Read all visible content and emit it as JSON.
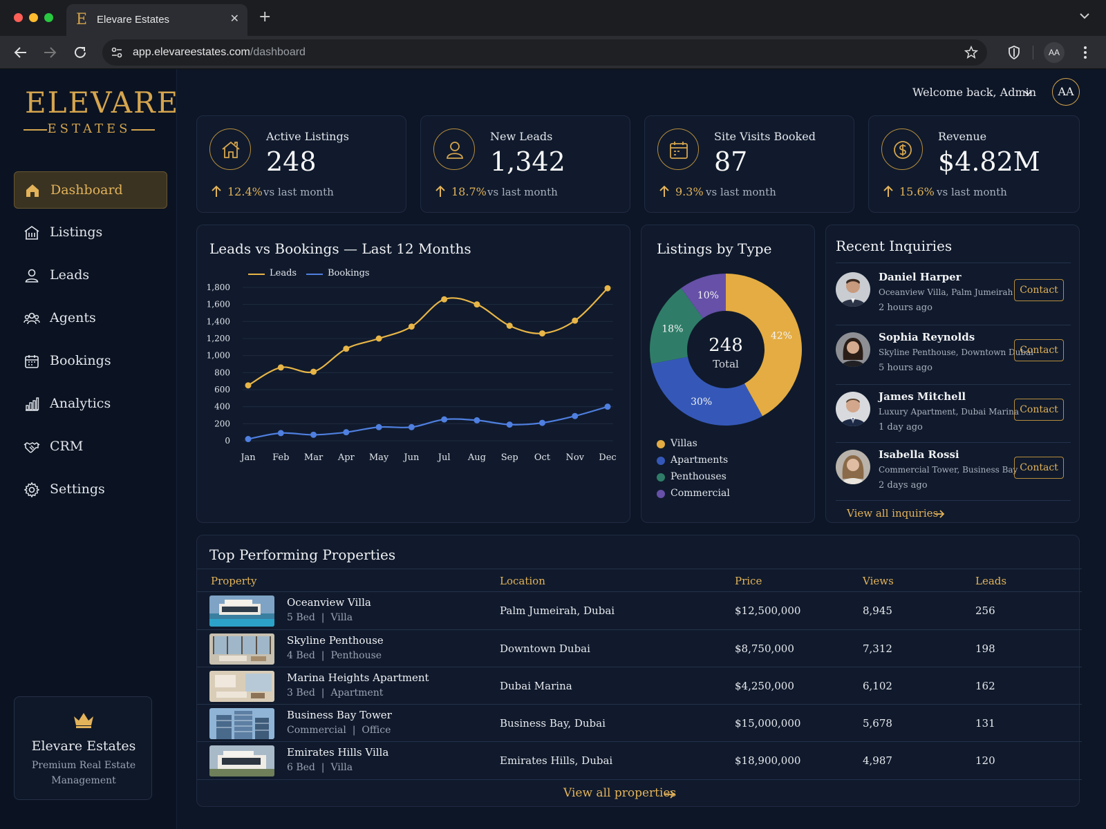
{
  "browser": {
    "tab_title": "Elevare Estates",
    "tab_favicon": "E",
    "url_host": "app.elevareestates.com",
    "url_path": "/dashboard",
    "profile_initials": "AA"
  },
  "brand": {
    "name": "ELEVARE",
    "sub": "ESTATES",
    "color": "#d5a54e"
  },
  "sidebar": {
    "items": [
      {
        "label": "Dashboard",
        "icon": "home-icon",
        "active": true
      },
      {
        "label": "Listings",
        "icon": "building-icon"
      },
      {
        "label": "Leads",
        "icon": "user-icon"
      },
      {
        "label": "Agents",
        "icon": "users-icon"
      },
      {
        "label": "Bookings",
        "icon": "calendar-icon"
      },
      {
        "label": "Analytics",
        "icon": "bar-chart-icon"
      },
      {
        "label": "CRM",
        "icon": "handshake-icon"
      },
      {
        "label": "Settings",
        "icon": "gear-icon"
      }
    ],
    "promo": {
      "title": "Elevare Estates",
      "subtitle": "Premium Real Estate Management",
      "icon": "crown-icon"
    }
  },
  "header": {
    "welcome": "Welcome back, Admin",
    "avatar": "AA"
  },
  "kpis": [
    {
      "label": "Active Listings",
      "value": "248",
      "change": "12.4%",
      "compare": "vs last month",
      "icon": "home-icon"
    },
    {
      "label": "New Leads",
      "value": "1,342",
      "change": "18.7%",
      "compare": "vs last month",
      "icon": "user-icon"
    },
    {
      "label": "Site Visits Booked",
      "value": "87",
      "change": "9.3%",
      "compare": "vs last month",
      "icon": "calendar-icon"
    },
    {
      "label": "Revenue",
      "value": "$4.82M",
      "change": "15.6%",
      "compare": "vs last month",
      "icon": "dollar-icon"
    }
  ],
  "chart_data": [
    {
      "type": "line",
      "title": "Leads vs Bookings — Last 12 Months",
      "categories": [
        "Jan",
        "Feb",
        "Mar",
        "Apr",
        "May",
        "Jun",
        "Jul",
        "Aug",
        "Sep",
        "Oct",
        "Nov",
        "Dec"
      ],
      "series": [
        {
          "name": "Leads",
          "color": "#e8b547",
          "values": [
            650,
            860,
            810,
            1080,
            1200,
            1340,
            1660,
            1600,
            1350,
            1260,
            1410,
            1790
          ]
        },
        {
          "name": "Bookings",
          "color": "#4f7fe0",
          "values": [
            20,
            90,
            70,
            100,
            160,
            160,
            250,
            240,
            190,
            210,
            290,
            400
          ]
        }
      ],
      "yticks": [
        "1,800",
        "1,600",
        "1,400",
        "1,200",
        "1,000",
        "800",
        "600",
        "400",
        "200",
        "0"
      ],
      "ylim": [
        0,
        1800
      ],
      "legend": "top-left",
      "grid": true
    },
    {
      "type": "pie",
      "title": "Listings by Type",
      "center_value": "248",
      "center_label": "Total",
      "slices": [
        {
          "name": "Villas",
          "value": 42,
          "label": "42%",
          "color": "#e4ac42"
        },
        {
          "name": "Apartments",
          "value": 30,
          "label": "30%",
          "color": "#3558b8"
        },
        {
          "name": "Penthouses",
          "value": 18,
          "label": "18%",
          "color": "#2f7d68"
        },
        {
          "name": "Commercial",
          "value": 10,
          "label": "10%",
          "color": "#6650a8"
        }
      ]
    }
  ],
  "inquiries": {
    "title": "Recent Inquiries",
    "items": [
      {
        "name": "Daniel Harper",
        "property": "Oceanview Villa, Palm Jumeirah",
        "time": "2 hours ago",
        "action": "Contact"
      },
      {
        "name": "Sophia Reynolds",
        "property": "Skyline Penthouse, Downtown Dubai",
        "time": "5 hours ago",
        "action": "Contact"
      },
      {
        "name": "James Mitchell",
        "property": "Luxury Apartment, Dubai Marina",
        "time": "1 day ago",
        "action": "Contact"
      },
      {
        "name": "Isabella Rossi",
        "property": "Commercial Tower, Business Bay",
        "time": "2 days ago",
        "action": "Contact"
      }
    ],
    "view_all": "View all inquiries"
  },
  "properties": {
    "title": "Top Performing Properties",
    "columns": [
      "Property",
      "Location",
      "Price",
      "Views",
      "Leads"
    ],
    "rows": [
      {
        "name": "Oceanview Villa",
        "beds": "5 Bed",
        "type": "Villa",
        "location": "Palm Jumeirah, Dubai",
        "price": "$12,500,000",
        "views": "8,945",
        "leads": "256"
      },
      {
        "name": "Skyline Penthouse",
        "beds": "4 Bed",
        "type": "Penthouse",
        "location": "Downtown Dubai",
        "price": "$8,750,000",
        "views": "7,312",
        "leads": "198"
      },
      {
        "name": "Marina Heights Apartment",
        "beds": "3 Bed",
        "type": "Apartment",
        "location": "Dubai Marina",
        "price": "$4,250,000",
        "views": "6,102",
        "leads": "162"
      },
      {
        "name": "Business Bay Tower",
        "beds": "Commercial",
        "type": "Office",
        "location": "Business Bay, Dubai",
        "price": "$15,000,000",
        "views": "5,678",
        "leads": "131"
      },
      {
        "name": "Emirates Hills Villa",
        "beds": "6 Bed",
        "type": "Villa",
        "location": "Emirates Hills, Dubai",
        "price": "$18,900,000",
        "views": "4,987",
        "leads": "120"
      }
    ],
    "view_all": "View all properties"
  }
}
